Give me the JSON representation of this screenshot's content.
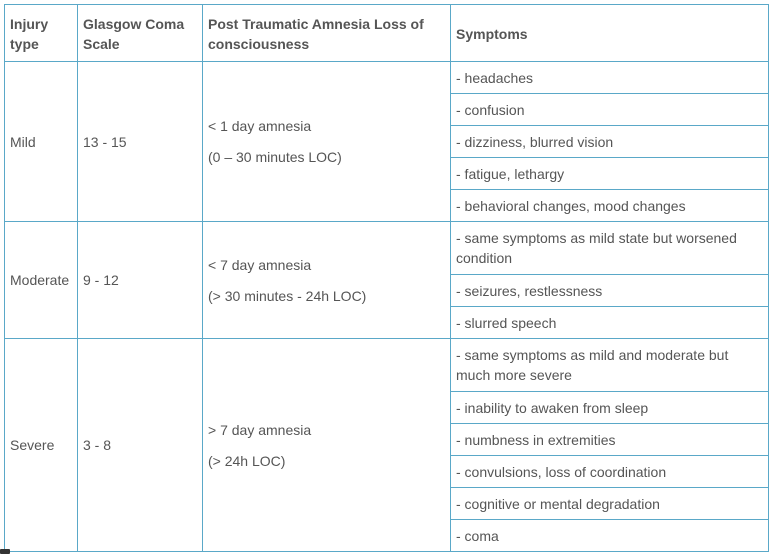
{
  "headers": [
    "Injury type",
    "Glasgow Coma Scale",
    "Post Traumatic Amnesia Loss of consciousness",
    "Symptoms"
  ],
  "rows": [
    {
      "type": "Mild",
      "gcs": "13 - 15",
      "pta": "< 1 day amnesia",
      "loc": "(0 – 30 minutes LOC)",
      "symptoms": [
        "- headaches",
        "- confusion",
        "- dizziness, blurred vision",
        "- fatigue, lethargy",
        "- behavioral changes, mood changes"
      ]
    },
    {
      "type": "Moderate",
      "gcs": "9 - 12",
      "pta": "< 7 day amnesia",
      "loc": "(> 30 minutes - 24h LOC)",
      "symptoms": [
        "- same symptoms as mild state but worsened condition",
        "- seizures, restlessness",
        "- slurred speech"
      ]
    },
    {
      "type": "Severe",
      "gcs": "3  - 8",
      "pta": "> 7 day amnesia",
      "loc": "(> 24h LOC)",
      "symptoms": [
        "- same symptoms as mild and moderate but much more severe",
        "- inability to awaken from sleep",
        "- numbness in extremities",
        "- convulsions, loss of coordination",
        "- cognitive or mental degradation",
        "- coma"
      ]
    }
  ]
}
